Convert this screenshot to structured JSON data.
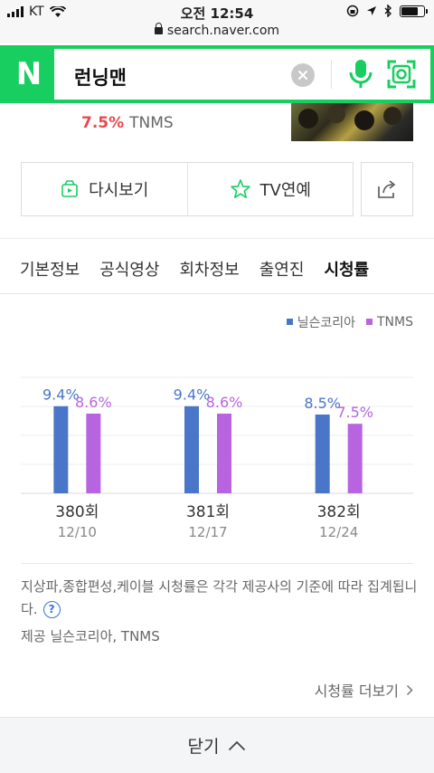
{
  "status_bar": {
    "carrier": "KT",
    "time": "오전 12:54",
    "battery_level": 0.8
  },
  "url": "search.naver.com",
  "search": {
    "logo": "N",
    "query": "런닝맨",
    "icons": [
      "clear-icon",
      "mic-icon",
      "lens-icon"
    ]
  },
  "summary": {
    "rating_pct": "7.5%",
    "rating_source": "TNMS"
  },
  "actions": {
    "replay_label": "다시보기",
    "tv_label": "TV연예"
  },
  "tabs": [
    "기본정보",
    "공식영상",
    "회차정보",
    "출연진",
    "시청률"
  ],
  "active_tab": "시청률",
  "legend": [
    {
      "name": "닐슨코리아",
      "color": "#4a76c9"
    },
    {
      "name": "TNMS",
      "color": "#b864e0"
    }
  ],
  "chart_data": {
    "type": "bar",
    "categories": [
      "380회",
      "381회",
      "382회"
    ],
    "dates": [
      "12/10",
      "12/17",
      "12/24"
    ],
    "series": [
      {
        "name": "닐슨코리아",
        "values": [
          9.4,
          9.4,
          8.5
        ],
        "labels": [
          "9.4%",
          "9.4%",
          "8.5%"
        ],
        "color": "#4a76c9"
      },
      {
        "name": "TNMS",
        "values": [
          8.6,
          8.6,
          7.5
        ],
        "labels": [
          "8.6%",
          "8.6%",
          "7.5%"
        ],
        "color": "#b864e0"
      }
    ],
    "ylim": [
      0,
      12.5
    ],
    "grid": true
  },
  "note": {
    "text": "지상파,종합편성,케이블 시청률은 각각 제공사의 기준에 따라 집계됩니다.",
    "help_icon": "?"
  },
  "provider": "제공 닐슨코리아, TNMS",
  "more_label": "시청률 더보기",
  "close_label": "닫기"
}
